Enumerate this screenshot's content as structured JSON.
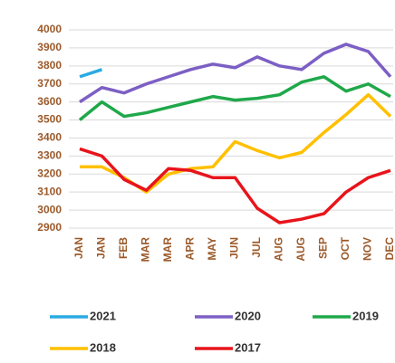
{
  "chart_data": {
    "type": "line",
    "categories": [
      "JAN",
      "JAN",
      "FEB",
      "MAR",
      "MAR",
      "APR",
      "MAY",
      "JUN",
      "JUL",
      "AUG",
      "AUG",
      "SEP",
      "OCT",
      "NOV",
      "DEC"
    ],
    "series": [
      {
        "name": "2021",
        "color": "#2aaae2",
        "values": [
          3740,
          3780,
          null,
          null,
          null,
          null,
          null,
          null,
          null,
          null,
          null,
          null,
          null,
          null,
          null
        ]
      },
      {
        "name": "2020",
        "color": "#7c5fc4",
        "values": [
          3600,
          3680,
          3650,
          3700,
          3740,
          3780,
          3810,
          3790,
          3850,
          3800,
          3780,
          3870,
          3920,
          3880,
          3740
        ]
      },
      {
        "name": "2019",
        "color": "#1fa84a",
        "values": [
          3500,
          3600,
          3520,
          3540,
          3570,
          3600,
          3630,
          3610,
          3620,
          3640,
          3710,
          3740,
          3660,
          3700,
          3630
        ]
      },
      {
        "name": "2018",
        "color": "#ffc000",
        "values": [
          3240,
          3240,
          3180,
          3100,
          3200,
          3230,
          3240,
          3380,
          3330,
          3290,
          3320,
          3430,
          3530,
          3640,
          3520
        ]
      },
      {
        "name": "2017",
        "color": "#e8141b",
        "values": [
          3340,
          3300,
          3170,
          3110,
          3230,
          3220,
          3180,
          3180,
          3010,
          2930,
          2950,
          2980,
          3100,
          3180,
          3220
        ]
      }
    ],
    "ylim": [
      2900,
      4000
    ],
    "yticks": [
      2900,
      3000,
      3100,
      3200,
      3300,
      3400,
      3500,
      3600,
      3700,
      3800,
      3900,
      4000
    ],
    "grid": true,
    "legend": "bottom"
  }
}
